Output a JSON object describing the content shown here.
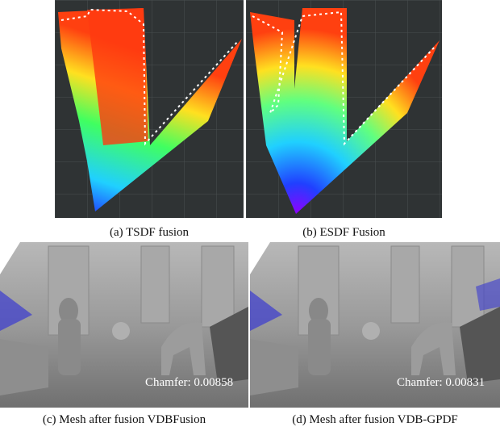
{
  "panels": [
    {
      "caption": "(a) TSDF fusion"
    },
    {
      "caption": "(b) ESDF Fusion"
    },
    {
      "caption": "(c) Mesh after fusion VDBFusion",
      "overlay": "Chamfer: 0.00858"
    },
    {
      "caption": "(d) Mesh after fusion VDB-GPDF",
      "overlay": "Chamfer: 0.00831"
    }
  ]
}
